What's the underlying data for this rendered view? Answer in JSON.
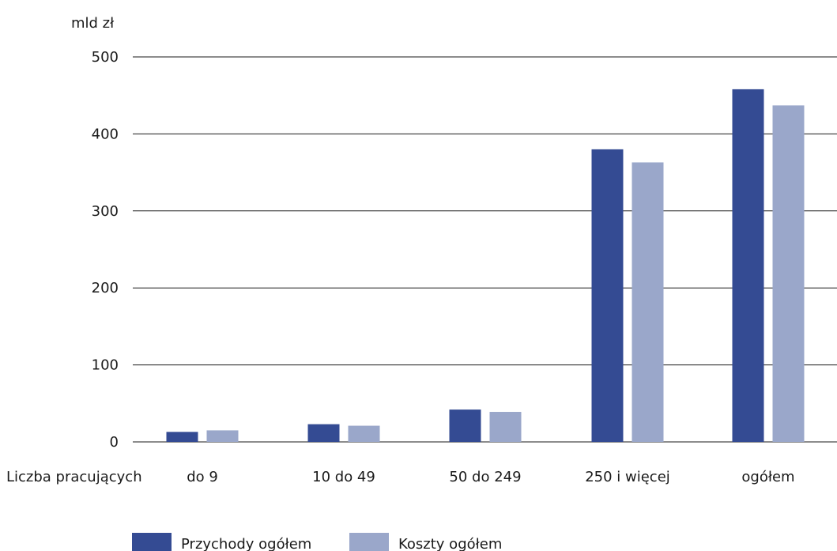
{
  "chart_data": {
    "type": "bar",
    "ylabel": "mld zł",
    "xlabel": "Liczba pracujących",
    "categories": [
      "do 9",
      "10 do 49",
      "50 do 249",
      "250 i więcej",
      "ogółem"
    ],
    "series": [
      {
        "name": "Przychody ogółem",
        "color": "#344b93",
        "values": [
          13,
          23,
          42,
          380,
          458
        ]
      },
      {
        "name": "Koszty ogółem",
        "color": "#9aa7ca",
        "values": [
          15,
          21,
          39,
          363,
          437
        ]
      }
    ],
    "ylim": [
      0,
      500
    ],
    "yticks": [
      0,
      100,
      200,
      300,
      400,
      500
    ],
    "grid": true,
    "legend_position": "bottom"
  }
}
